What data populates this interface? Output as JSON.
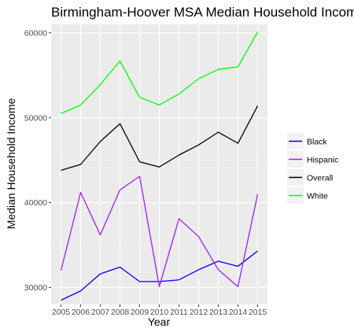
{
  "chart_data": {
    "type": "line",
    "title": "Birmingham-Hoover MSA Median Household Income",
    "xlabel": "Year",
    "ylabel": "Median Household Income",
    "categories": [
      "2005",
      "2006",
      "2007",
      "2008",
      "2009",
      "2010",
      "2011",
      "2012",
      "2013",
      "2014",
      "2015"
    ],
    "y_ticks": [
      "30000",
      "40000",
      "50000",
      "60000"
    ],
    "ylim": [
      28000,
      61000
    ],
    "grid": true,
    "legend_position": "right",
    "series": [
      {
        "name": "Black",
        "color": "#0000ff",
        "values": [
          28500,
          29600,
          31600,
          32400,
          30700,
          30700,
          30900,
          32100,
          33100,
          32500,
          34300
        ]
      },
      {
        "name": "Hispanic",
        "color": "#a020f0",
        "values": [
          32000,
          41200,
          36200,
          41500,
          43100,
          30100,
          38100,
          36000,
          32100,
          30100,
          41000
        ]
      },
      {
        "name": "Overall",
        "color": "#000000",
        "values": [
          43800,
          44500,
          47200,
          49300,
          44800,
          44200,
          45600,
          46800,
          48300,
          47000,
          51400
        ]
      },
      {
        "name": "White",
        "color": "#00ff00",
        "values": [
          50500,
          51500,
          53900,
          56700,
          52400,
          51500,
          52800,
          54600,
          55700,
          56000,
          60100
        ]
      }
    ]
  }
}
